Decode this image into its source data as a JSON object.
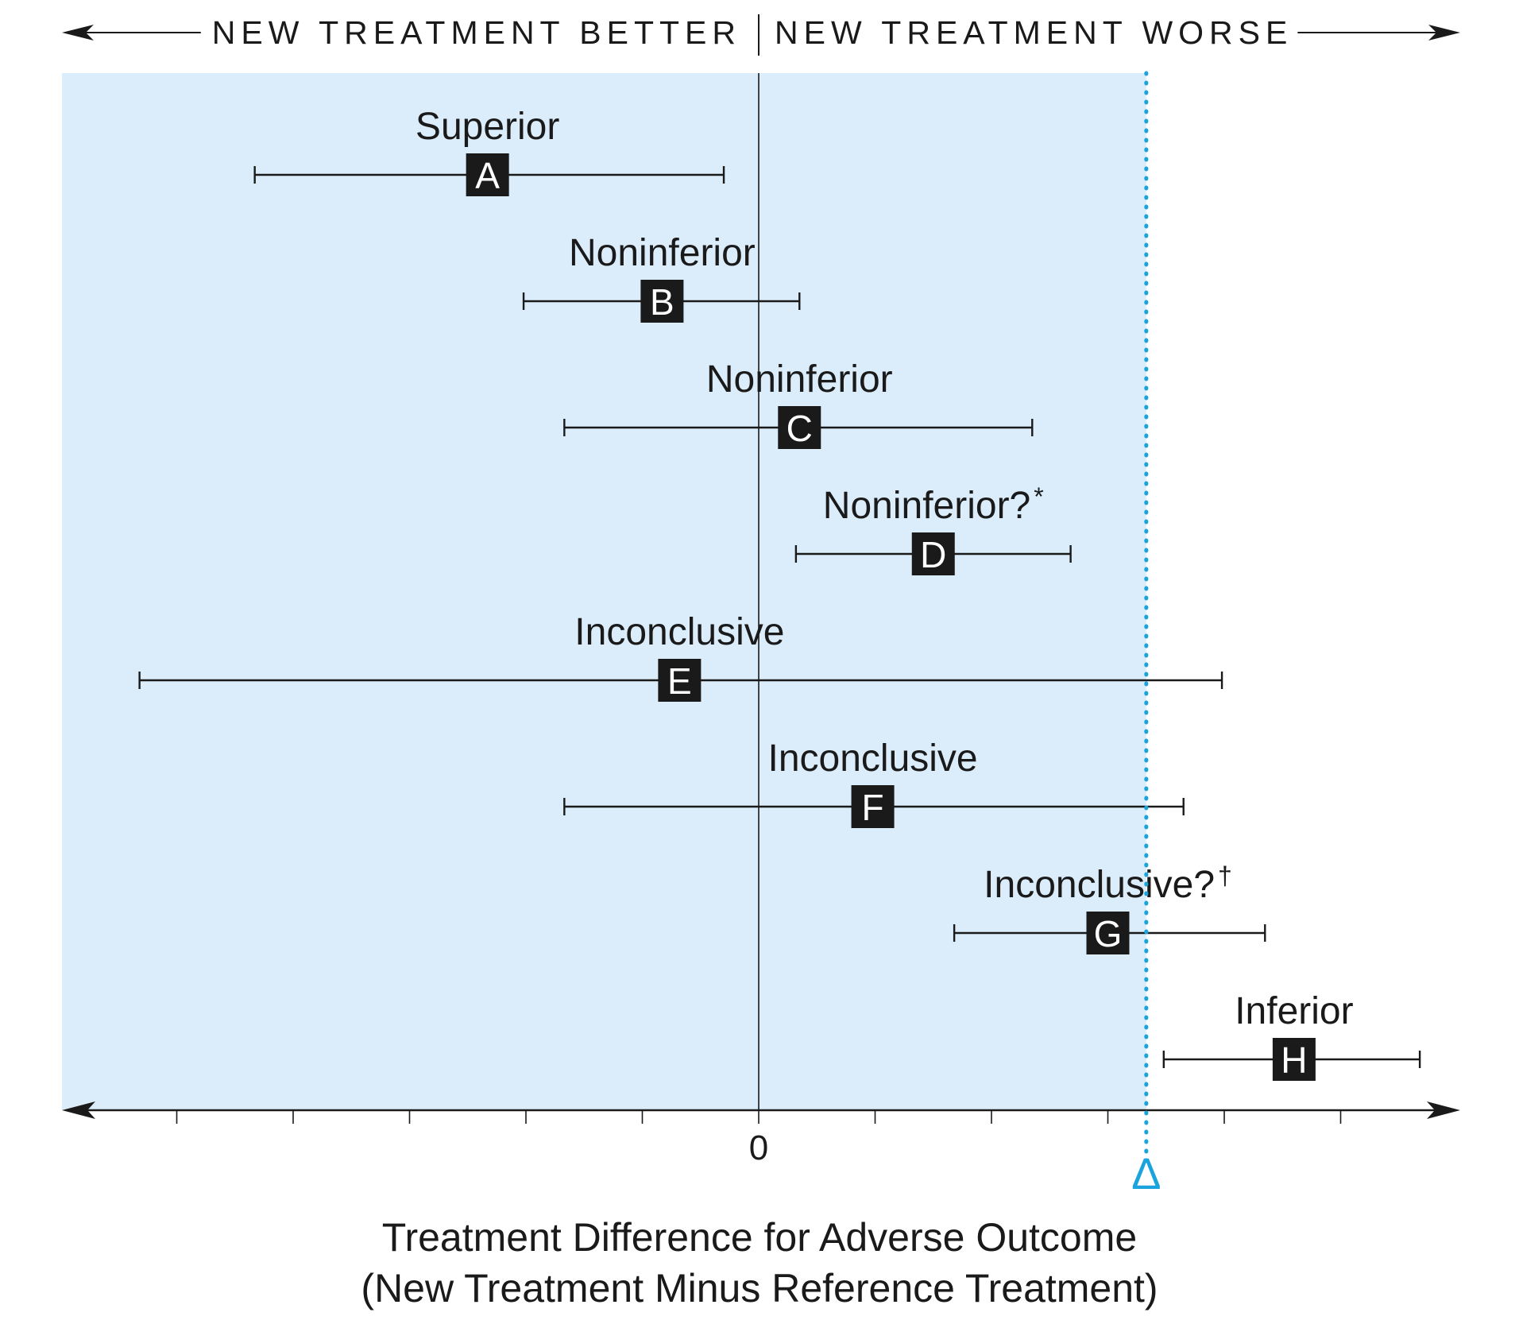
{
  "chart_data": {
    "type": "forest",
    "direction_left": "NEW TREATMENT BETTER",
    "direction_right": "NEW TREATMENT WORSE",
    "xlabel_line1": "Treatment Difference for Adverse Outcome",
    "xlabel_line2": "(New Treatment Minus Reference Treatment)",
    "zero_tick_label": "0",
    "margin_symbol": "Δ",
    "margin_value": 3.33,
    "xlim": [
      -6,
      6
    ],
    "shaded_region": [
      -6,
      3.33
    ],
    "tick_values": [
      -5,
      -4,
      -3,
      -2,
      -1,
      0,
      1,
      2,
      3,
      4,
      5
    ],
    "colors": {
      "shade": "#dbedfb",
      "margin_line": "#1aa3dc",
      "marker": "#1a1a1a"
    },
    "estimates": [
      {
        "id": "A",
        "label": "Superior",
        "sup": "",
        "point": -2.33,
        "lower": -4.33,
        "upper": -0.3
      },
      {
        "id": "B",
        "label": "Noninferior",
        "sup": "",
        "point": -0.83,
        "lower": -2.02,
        "upper": 0.35
      },
      {
        "id": "C",
        "label": "Noninferior",
        "sup": "",
        "point": 0.35,
        "lower": -1.67,
        "upper": 2.35
      },
      {
        "id": "D",
        "label": "Noninferior?",
        "sup": "*",
        "point": 1.5,
        "lower": 0.32,
        "upper": 2.68
      },
      {
        "id": "E",
        "label": "Inconclusive",
        "sup": "",
        "point": -0.68,
        "lower": -5.32,
        "upper": 3.98
      },
      {
        "id": "F",
        "label": "Inconclusive",
        "sup": "",
        "point": 0.98,
        "lower": -1.67,
        "upper": 3.65
      },
      {
        "id": "G",
        "label": "Inconclusive?",
        "sup": "†",
        "point": 3.0,
        "lower": 1.68,
        "upper": 4.35
      },
      {
        "id": "H",
        "label": "Inferior",
        "sup": "",
        "point": 4.6,
        "lower": 3.48,
        "upper": 5.68
      }
    ]
  }
}
